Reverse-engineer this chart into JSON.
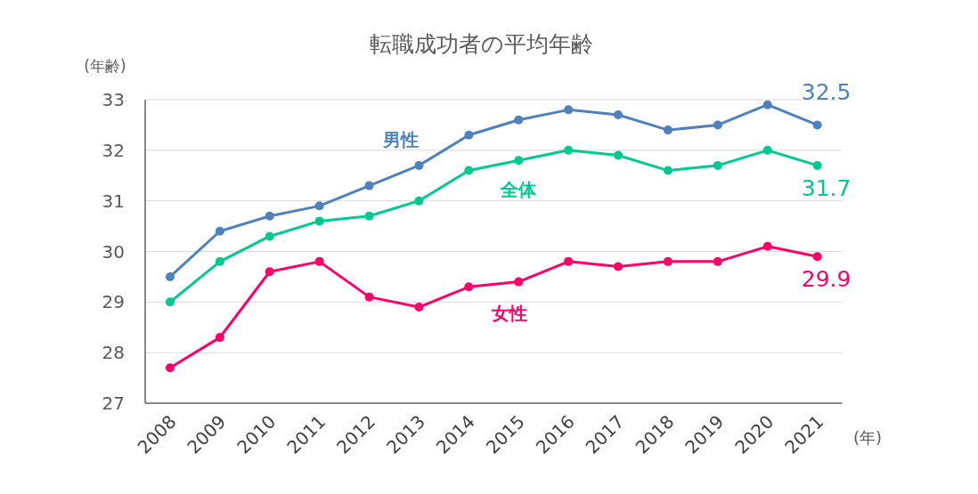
{
  "chart_data": {
    "type": "line",
    "title": "転職成功者の平均年齢",
    "ylabel": "(年齢)",
    "xlabel": "(年)",
    "categories": [
      "2008",
      "2009",
      "2010",
      "2011",
      "2012",
      "2013",
      "2014",
      "2015",
      "2016",
      "2017",
      "2018",
      "2019",
      "2020",
      "2021"
    ],
    "ylim": [
      27,
      33
    ],
    "yticks": [
      27,
      28,
      29,
      30,
      31,
      32,
      33
    ],
    "grid": "y",
    "legend": false,
    "marker": "circle",
    "line_style": "solid",
    "series": [
      {
        "name": "男性",
        "color": "#4f81bd",
        "values": [
          29.5,
          30.4,
          30.7,
          30.9,
          31.3,
          31.7,
          32.3,
          32.6,
          32.8,
          32.7,
          32.4,
          32.5,
          32.9,
          32.5
        ],
        "value_labels": [
          null,
          null,
          null,
          null,
          null,
          null,
          null,
          null,
          null,
          null,
          null,
          null,
          null,
          "32.5"
        ]
      },
      {
        "name": "全体",
        "color": "#00c98f",
        "values": [
          29.0,
          29.8,
          30.3,
          30.6,
          30.7,
          31.0,
          31.6,
          31.8,
          32.0,
          31.9,
          31.6,
          31.7,
          32.0,
          31.7
        ],
        "value_labels": [
          null,
          null,
          null,
          null,
          null,
          null,
          null,
          null,
          null,
          null,
          null,
          null,
          null,
          "31.7"
        ]
      },
      {
        "name": "女性",
        "color": "#ff0066",
        "values": [
          27.7,
          28.3,
          29.6,
          29.8,
          29.1,
          28.9,
          29.3,
          29.4,
          29.8,
          29.7,
          29.8,
          29.8,
          30.1,
          29.9
        ],
        "value_labels": [
          null,
          null,
          null,
          null,
          null,
          null,
          null,
          null,
          null,
          null,
          null,
          null,
          null,
          "29.9"
        ]
      }
    ]
  }
}
